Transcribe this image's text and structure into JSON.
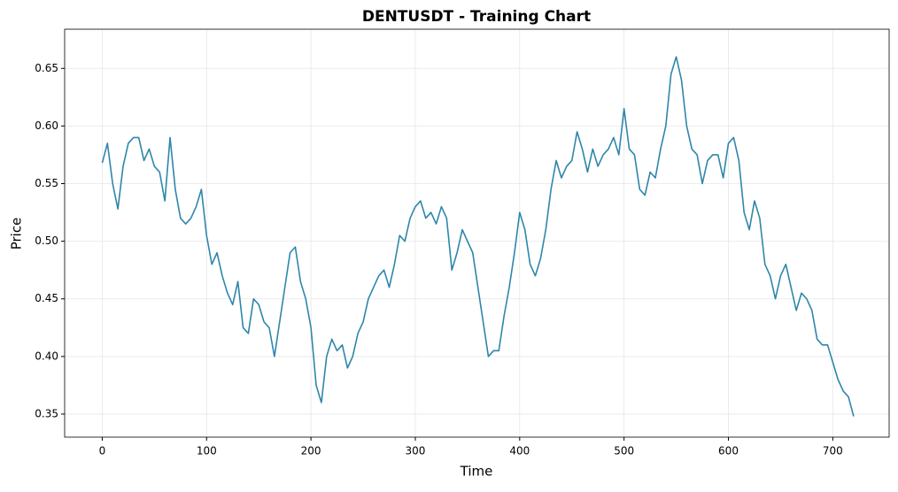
{
  "chart_data": {
    "type": "line",
    "title": "DENTUSDT - Training Chart",
    "x_label": "Time",
    "y_label": "Price",
    "x": [
      0,
      5,
      10,
      15,
      20,
      25,
      30,
      35,
      40,
      45,
      50,
      55,
      60,
      65,
      70,
      75,
      80,
      85,
      90,
      95,
      100,
      105,
      110,
      115,
      120,
      125,
      130,
      135,
      140,
      145,
      150,
      155,
      160,
      165,
      170,
      175,
      180,
      185,
      190,
      195,
      200,
      205,
      210,
      215,
      220,
      225,
      230,
      235,
      240,
      245,
      250,
      255,
      260,
      265,
      270,
      275,
      280,
      285,
      290,
      295,
      300,
      305,
      310,
      315,
      320,
      325,
      330,
      335,
      340,
      345,
      350,
      355,
      360,
      365,
      370,
      375,
      380,
      385,
      390,
      395,
      400,
      405,
      410,
      415,
      420,
      425,
      430,
      435,
      440,
      445,
      450,
      455,
      460,
      465,
      470,
      475,
      480,
      485,
      490,
      495,
      500,
      505,
      510,
      515,
      520,
      525,
      530,
      535,
      540,
      545,
      550,
      555,
      560,
      565,
      570,
      575,
      580,
      585,
      590,
      595,
      600,
      605,
      610,
      615,
      620,
      625,
      630,
      635,
      640,
      645,
      650,
      655,
      660,
      665,
      670,
      675,
      680,
      685,
      690,
      695,
      700,
      705,
      710,
      715,
      720
    ],
    "series": [
      {
        "name": "DENTUSDT",
        "color": "#2e86ab",
        "values": [
          0.568,
          0.585,
          0.55,
          0.528,
          0.565,
          0.585,
          0.59,
          0.59,
          0.57,
          0.58,
          0.565,
          0.56,
          0.535,
          0.59,
          0.545,
          0.52,
          0.515,
          0.52,
          0.53,
          0.545,
          0.505,
          0.48,
          0.49,
          0.47,
          0.455,
          0.445,
          0.465,
          0.425,
          0.42,
          0.45,
          0.445,
          0.43,
          0.425,
          0.4,
          0.43,
          0.46,
          0.49,
          0.495,
          0.465,
          0.45,
          0.425,
          0.375,
          0.36,
          0.4,
          0.415,
          0.405,
          0.41,
          0.39,
          0.4,
          0.42,
          0.43,
          0.45,
          0.46,
          0.47,
          0.475,
          0.46,
          0.48,
          0.505,
          0.5,
          0.52,
          0.53,
          0.535,
          0.52,
          0.525,
          0.515,
          0.53,
          0.52,
          0.475,
          0.49,
          0.51,
          0.5,
          0.49,
          0.46,
          0.43,
          0.4,
          0.405,
          0.405,
          0.435,
          0.46,
          0.49,
          0.525,
          0.51,
          0.48,
          0.47,
          0.485,
          0.51,
          0.545,
          0.57,
          0.555,
          0.565,
          0.57,
          0.595,
          0.58,
          0.56,
          0.58,
          0.565,
          0.575,
          0.58,
          0.59,
          0.575,
          0.615,
          0.58,
          0.575,
          0.545,
          0.54,
          0.56,
          0.555,
          0.58,
          0.6,
          0.645,
          0.66,
          0.64,
          0.6,
          0.58,
          0.575,
          0.55,
          0.57,
          0.575,
          0.575,
          0.555,
          0.585,
          0.59,
          0.57,
          0.525,
          0.51,
          0.535,
          0.52,
          0.48,
          0.47,
          0.45,
          0.47,
          0.48,
          0.46,
          0.44,
          0.455,
          0.45,
          0.44,
          0.415,
          0.41,
          0.41,
          0.395,
          0.38,
          0.37,
          0.365,
          0.348
        ]
      }
    ],
    "xlim": [
      -36,
      754
    ],
    "ylim": [
      0.33,
      0.684
    ],
    "xticks": [
      0,
      100,
      200,
      300,
      400,
      500,
      600,
      700
    ],
    "yticks": [
      0.35,
      {
        "value": 0.4,
        "label": "0.40"
      },
      0.45,
      {
        "value": 0.5,
        "label": "0.50"
      },
      0.55,
      {
        "value": 0.6,
        "label": "0.60"
      },
      0.65
    ],
    "grid": true
  }
}
